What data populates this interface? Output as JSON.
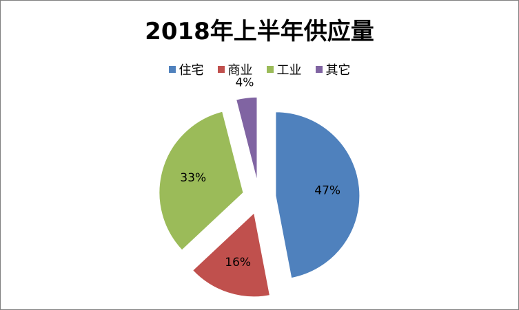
{
  "chart_data": {
    "type": "pie",
    "title": "2018年上半年供应量",
    "legend_position": "top",
    "exploded": true,
    "slices": [
      {
        "name": "住宅",
        "value": 47,
        "label": "47%",
        "color": "#4f81bd"
      },
      {
        "name": "商业",
        "value": 16,
        "label": "16%",
        "color": "#c0504d"
      },
      {
        "name": "工业",
        "value": 33,
        "label": "33%",
        "color": "#9bbb59"
      },
      {
        "name": "其它",
        "value": 4,
        "label": "4%",
        "color": "#8064a2"
      }
    ]
  }
}
